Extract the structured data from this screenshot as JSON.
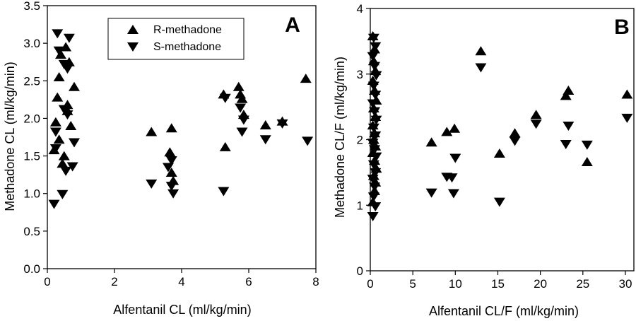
{
  "chart_data": [
    {
      "type": "scatter",
      "panel_label": "A",
      "xlabel": "Alfentanil CL (ml/kg/min)",
      "ylabel": "Methadone CL (ml/kg/min)",
      "xlim": [
        0,
        8
      ],
      "ylim": [
        0,
        3.5
      ],
      "xticks": [
        0,
        2,
        4,
        6,
        8
      ],
      "xtick_labels": [
        "0",
        "2",
        "4",
        "6",
        "8"
      ],
      "yticks": [
        0,
        0.5,
        1,
        1.5,
        2,
        2.5,
        3,
        3.5
      ],
      "ytick_labels": [
        "0.0",
        "0.5",
        "1.0",
        "1.5",
        "2.0",
        "2.5",
        "3.0",
        "3.5"
      ],
      "legend": {
        "position": "top-center",
        "entries": [
          "R-methadone",
          "S-methadone"
        ]
      },
      "series": [
        {
          "name": "R-methadone",
          "marker": "triangle-up",
          "x": [
            0.2,
            0.25,
            0.3,
            0.35,
            0.4,
            0.45,
            0.5,
            0.55,
            0.6,
            0.65,
            0.7,
            0.8,
            0.35,
            0.6,
            3.1,
            3.7,
            3.65,
            3.7,
            3.75,
            5.25,
            5.3,
            5.7,
            5.75,
            5.8,
            5.85,
            6.5,
            7.0,
            7.7
          ],
          "y": [
            1.58,
            1.95,
            2.28,
            2.55,
            2.85,
            1.4,
            1.5,
            2.95,
            2.18,
            2.75,
            1.9,
            2.42,
            1.72,
            2.1,
            1.82,
            1.87,
            1.55,
            1.28,
            1.17,
            2.32,
            1.62,
            2.42,
            2.32,
            2.26,
            2.05,
            1.91,
            1.96,
            2.53
          ]
        },
        {
          "name": "S-methadone",
          "marker": "triangle-down",
          "x": [
            0.2,
            0.25,
            0.3,
            0.35,
            0.45,
            0.5,
            0.55,
            0.6,
            0.65,
            0.75,
            0.8,
            0.25,
            0.5,
            0.6,
            3.1,
            3.6,
            3.7,
            3.7,
            3.75,
            5.25,
            5.3,
            5.75,
            5.8,
            5.85,
            6.5,
            7.0,
            7.75
          ],
          "y": [
            0.86,
            1.6,
            3.13,
            2.9,
            0.99,
            2.72,
            1.3,
            2.05,
            3.07,
            1.36,
            1.68,
            1.82,
            2.12,
            2.66,
            1.13,
            1.35,
            1.44,
            1.1,
            1.0,
            1.03,
            2.27,
            2.14,
            1.82,
            1.98,
            1.72,
            1.93,
            1.7
          ]
        }
      ]
    },
    {
      "type": "scatter",
      "panel_label": "B",
      "xlabel": "Alfentanil CL/F (ml/kg/min)",
      "ylabel": "Methadone CL/F (ml/kg/min)",
      "xlim": [
        0,
        31
      ],
      "ylim": [
        0,
        4
      ],
      "xticks": [
        0,
        5,
        10,
        15,
        20,
        25,
        30
      ],
      "xtick_labels": [
        "0",
        "5",
        "10",
        "15",
        "20",
        "25",
        "30"
      ],
      "yticks": [
        0,
        1,
        2,
        3,
        4
      ],
      "ytick_labels": [
        "0",
        "1",
        "2",
        "3",
        "4"
      ],
      "series": [
        {
          "name": "R-methadone",
          "marker": "triangle-up",
          "x": [
            0.3,
            0.5,
            0.4,
            0.6,
            0.3,
            0.5,
            0.7,
            0.4,
            0.6,
            0.3,
            0.5,
            0.4,
            0.6,
            0.3,
            0.5,
            0.7,
            0.4,
            0.6,
            0.5,
            0.3,
            7.2,
            9.0,
            9.9,
            13.0,
            15.2,
            17.0,
            19.5,
            23.0,
            23.3,
            25.5,
            30.2
          ],
          "y": [
            3.58,
            3.38,
            3.2,
            3.05,
            2.9,
            2.75,
            2.6,
            2.48,
            2.35,
            2.22,
            2.1,
            2.0,
            1.9,
            1.8,
            1.68,
            1.56,
            1.45,
            1.35,
            1.22,
            1.05,
            1.96,
            2.12,
            2.17,
            3.35,
            1.79,
            2.1,
            2.38,
            2.67,
            2.75,
            1.66,
            2.69
          ]
        },
        {
          "name": "S-methadone",
          "marker": "triangle-down",
          "x": [
            0.4,
            0.6,
            0.3,
            0.5,
            0.7,
            0.4,
            0.6,
            0.3,
            0.5,
            0.7,
            0.4,
            0.6,
            0.3,
            0.5,
            0.7,
            0.4,
            0.6,
            0.3,
            0.5,
            0.4,
            0.6,
            0.3,
            7.2,
            9.0,
            9.6,
            9.8,
            10.0,
            13.0,
            15.2,
            17.0,
            19.5,
            23.0,
            23.3,
            25.5,
            30.2
          ],
          "y": [
            3.55,
            3.42,
            3.27,
            3.12,
            2.98,
            2.82,
            2.68,
            2.55,
            2.43,
            2.3,
            2.18,
            2.06,
            1.95,
            1.85,
            1.74,
            1.62,
            1.5,
            1.4,
            1.28,
            1.13,
            0.98,
            0.83,
            1.19,
            1.43,
            1.42,
            1.18,
            1.72,
            3.1,
            1.05,
            1.98,
            2.24,
            1.93,
            2.21,
            1.92,
            2.33
          ]
        }
      ]
    }
  ]
}
